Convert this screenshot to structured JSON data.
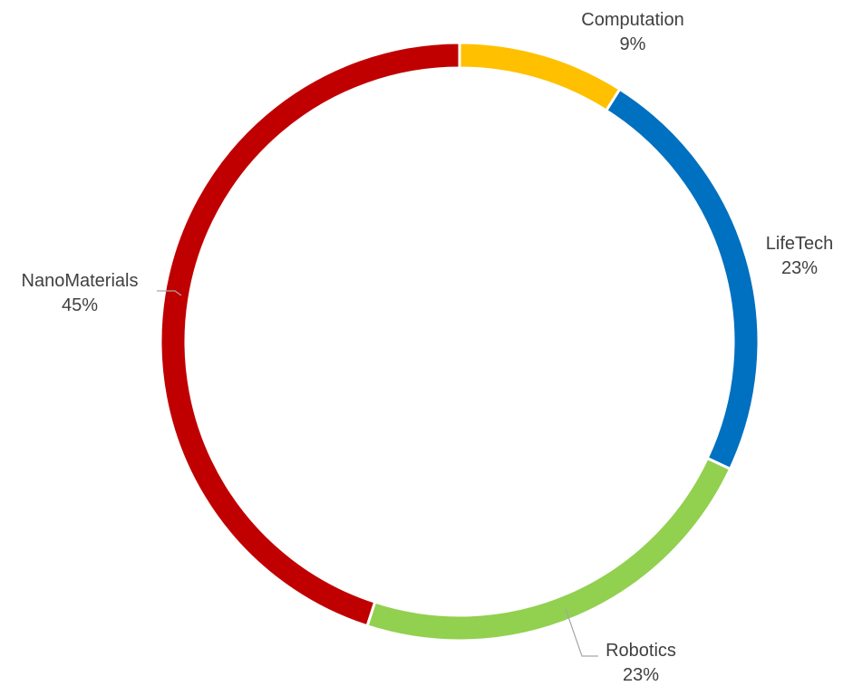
{
  "chart_data": {
    "type": "pie",
    "variant": "donut",
    "title": "",
    "categories": [
      "Computation",
      "LifeTech",
      "Robotics",
      "NanoMaterials"
    ],
    "values": [
      9,
      23,
      23,
      45
    ],
    "labels": [
      "9%",
      "23%",
      "23%",
      "45%"
    ],
    "unit": "%",
    "colors": [
      "#FFC000",
      "#0070C0",
      "#92D050",
      "#C00000"
    ],
    "start_angle_deg": 0,
    "direction": "clockwise",
    "legend": "none",
    "data_labels": "outside, category name and percentage, with leader lines"
  }
}
